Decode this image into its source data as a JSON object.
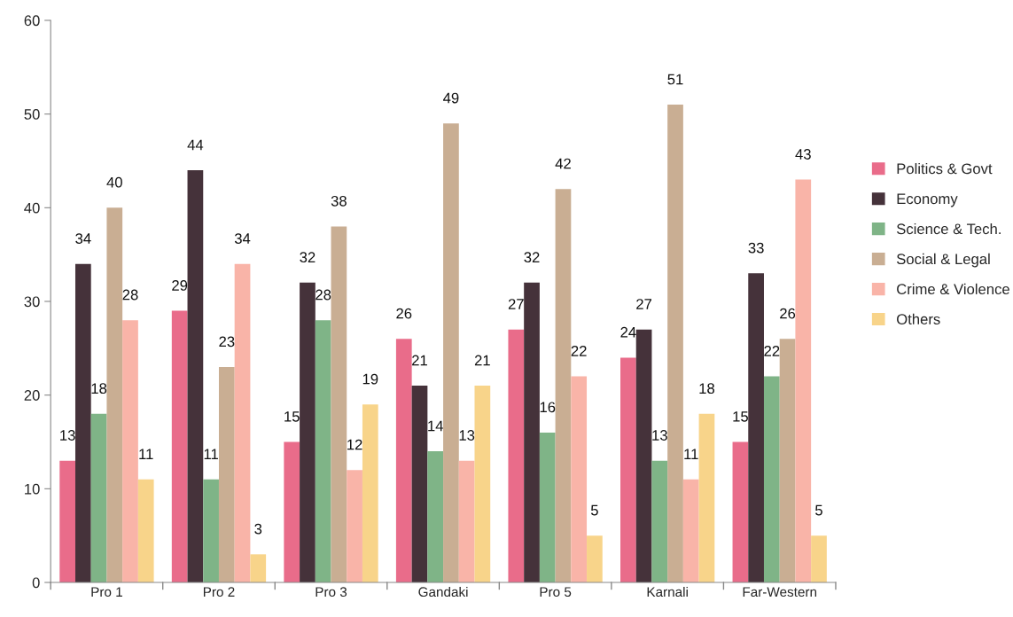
{
  "chart_data": {
    "type": "bar",
    "categories": [
      "Pro 1",
      "Pro 2",
      "Pro 3",
      "Gandaki",
      "Pro 5",
      "Karnali",
      "Far-Western"
    ],
    "series": [
      {
        "name": "Politics & Govt",
        "color": "#e96c8a",
        "values": [
          13,
          29,
          15,
          26,
          27,
          24,
          15
        ]
      },
      {
        "name": "Economy",
        "color": "#45323a",
        "values": [
          34,
          44,
          32,
          21,
          32,
          27,
          33
        ]
      },
      {
        "name": "Science & Tech.",
        "color": "#7fb487",
        "values": [
          18,
          11,
          28,
          14,
          16,
          13,
          22
        ]
      },
      {
        "name": "Social & Legal",
        "color": "#c9ae93",
        "values": [
          40,
          23,
          38,
          49,
          42,
          51,
          26
        ]
      },
      {
        "name": "Crime & Violence",
        "color": "#f9b4a8",
        "values": [
          28,
          34,
          12,
          13,
          22,
          11,
          43
        ]
      },
      {
        "name": "Others",
        "color": "#f8d48a",
        "values": [
          11,
          3,
          19,
          21,
          5,
          18,
          5
        ]
      }
    ],
    "ylim": [
      0,
      60
    ],
    "yticks": [
      0,
      10,
      20,
      30,
      40,
      50,
      60
    ],
    "data_labels": true,
    "grid": false,
    "legend": "right"
  }
}
